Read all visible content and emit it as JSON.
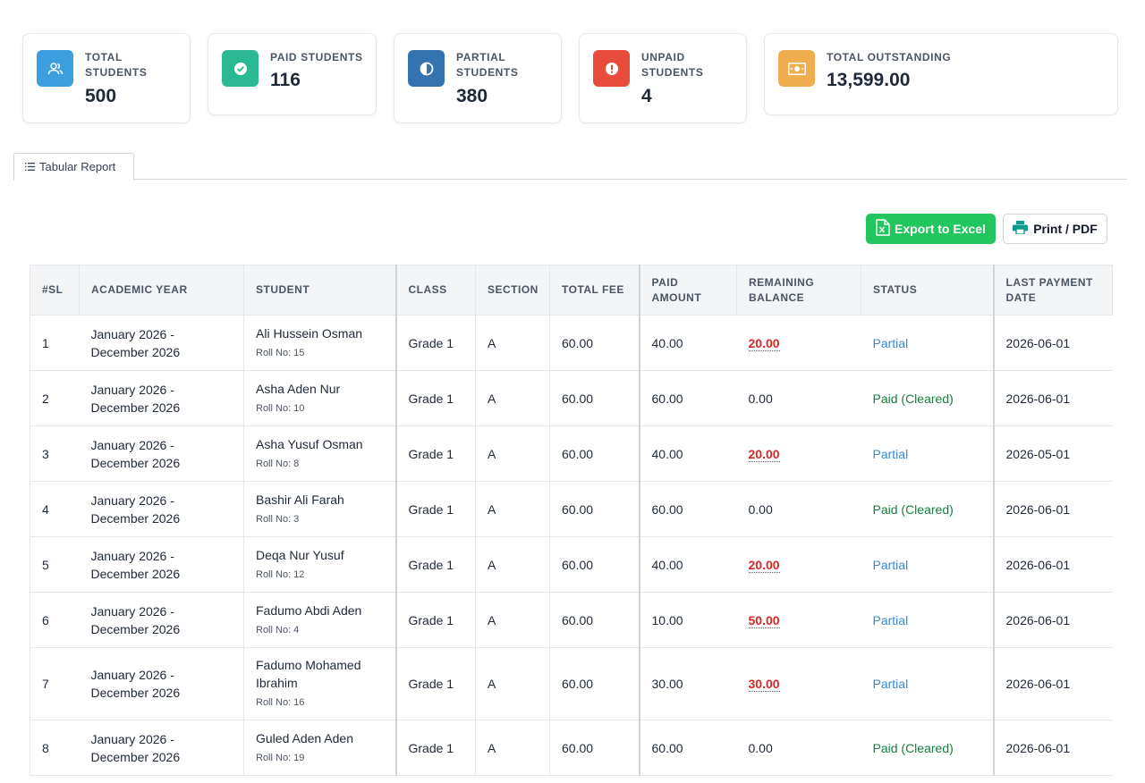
{
  "stats": [
    {
      "label_lines": [
        "TOTAL",
        "STUDENTS"
      ],
      "value": "500",
      "icon": "users-icon",
      "color": "#3b9ede"
    },
    {
      "label_lines": [
        "PAID STUDENTS"
      ],
      "value": "116",
      "icon": "check-circle-icon",
      "color": "#2bb994"
    },
    {
      "label_lines": [
        "PARTIAL",
        "STUDENTS"
      ],
      "value": "380",
      "icon": "half-circle-icon",
      "color": "#3572b0"
    },
    {
      "label_lines": [
        "UNPAID",
        "STUDENTS"
      ],
      "value": "4",
      "icon": "exclamation-icon",
      "color": "#e74c3c"
    },
    {
      "label_lines": [
        "TOTAL OUTSTANDING"
      ],
      "value": "13,599.00",
      "icon": "money-bill-icon",
      "color": "#f0ad4e"
    }
  ],
  "tab": {
    "label": "Tabular Report",
    "icon": "list-icon"
  },
  "actions": {
    "export_label": "Export to Excel",
    "print_label": "Print / PDF"
  },
  "table": {
    "headers": [
      "#SL",
      "ACADEMIC YEAR",
      "STUDENT",
      "CLASS",
      "SECTION",
      "TOTAL FEE",
      "PAID AMOUNT",
      "REMAINING BALANCE",
      "STATUS",
      "LAST PAYMENT DATE"
    ],
    "rows": [
      {
        "sl": "1",
        "year": "January 2026 - December 2026",
        "name": "Ali Hussein Osman",
        "roll": "Roll No: 15",
        "class": "Grade 1",
        "section": "A",
        "total": "60.00",
        "paid": "40.00",
        "balance": "20.00",
        "status": "Partial",
        "date": "2026-06-01"
      },
      {
        "sl": "2",
        "year": "January 2026 - December 2026",
        "name": "Asha Aden Nur",
        "roll": "Roll No: 10",
        "class": "Grade 1",
        "section": "A",
        "total": "60.00",
        "paid": "60.00",
        "balance": "0.00",
        "status": "Paid (Cleared)",
        "date": "2026-06-01"
      },
      {
        "sl": "3",
        "year": "January 2026 - December 2026",
        "name": "Asha Yusuf Osman",
        "roll": "Roll No: 8",
        "class": "Grade 1",
        "section": "A",
        "total": "60.00",
        "paid": "40.00",
        "balance": "20.00",
        "status": "Partial",
        "date": "2026-05-01"
      },
      {
        "sl": "4",
        "year": "January 2026 - December 2026",
        "name": "Bashir Ali Farah",
        "roll": "Roll No: 3",
        "class": "Grade 1",
        "section": "A",
        "total": "60.00",
        "paid": "60.00",
        "balance": "0.00",
        "status": "Paid (Cleared)",
        "date": "2026-06-01"
      },
      {
        "sl": "5",
        "year": "January 2026 - December 2026",
        "name": "Deqa Nur Yusuf",
        "roll": "Roll No: 12",
        "class": "Grade 1",
        "section": "A",
        "total": "60.00",
        "paid": "40.00",
        "balance": "20.00",
        "status": "Partial",
        "date": "2026-06-01"
      },
      {
        "sl": "6",
        "year": "January 2026 - December 2026",
        "name": "Fadumo Abdi Aden",
        "roll": "Roll No: 4",
        "class": "Grade 1",
        "section": "A",
        "total": "60.00",
        "paid": "10.00",
        "balance": "50.00",
        "status": "Partial",
        "date": "2026-06-01"
      },
      {
        "sl": "7",
        "year": "January 2026 - December 2026",
        "name": "Fadumo Mohamed Ibrahim",
        "roll": "Roll No: 16",
        "class": "Grade 1",
        "section": "A",
        "total": "60.00",
        "paid": "30.00",
        "balance": "30.00",
        "status": "Partial",
        "date": "2026-06-01"
      },
      {
        "sl": "8",
        "year": "January 2026 - December 2026",
        "name": "Guled Aden Aden",
        "roll": "Roll No: 19",
        "class": "Grade 1",
        "section": "A",
        "total": "60.00",
        "paid": "60.00",
        "balance": "0.00",
        "status": "Paid (Cleared)",
        "date": "2026-06-01"
      }
    ]
  }
}
